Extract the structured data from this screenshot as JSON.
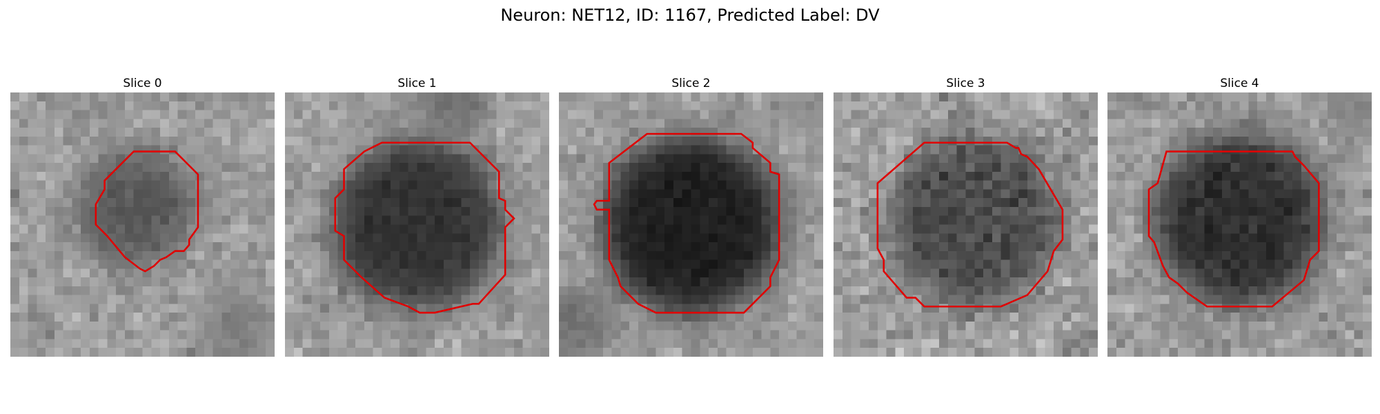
{
  "figure": {
    "title": "Neuron: NET12, ID: 1167, Predicted Label: DV"
  },
  "panels": [
    {
      "title": "Slice 0"
    },
    {
      "title": "Slice 1"
    },
    {
      "title": "Slice 2"
    },
    {
      "title": "Slice 3"
    },
    {
      "title": "Slice 4"
    }
  ],
  "colors": {
    "contour": "#e00000",
    "colormap": "grayscale"
  }
}
